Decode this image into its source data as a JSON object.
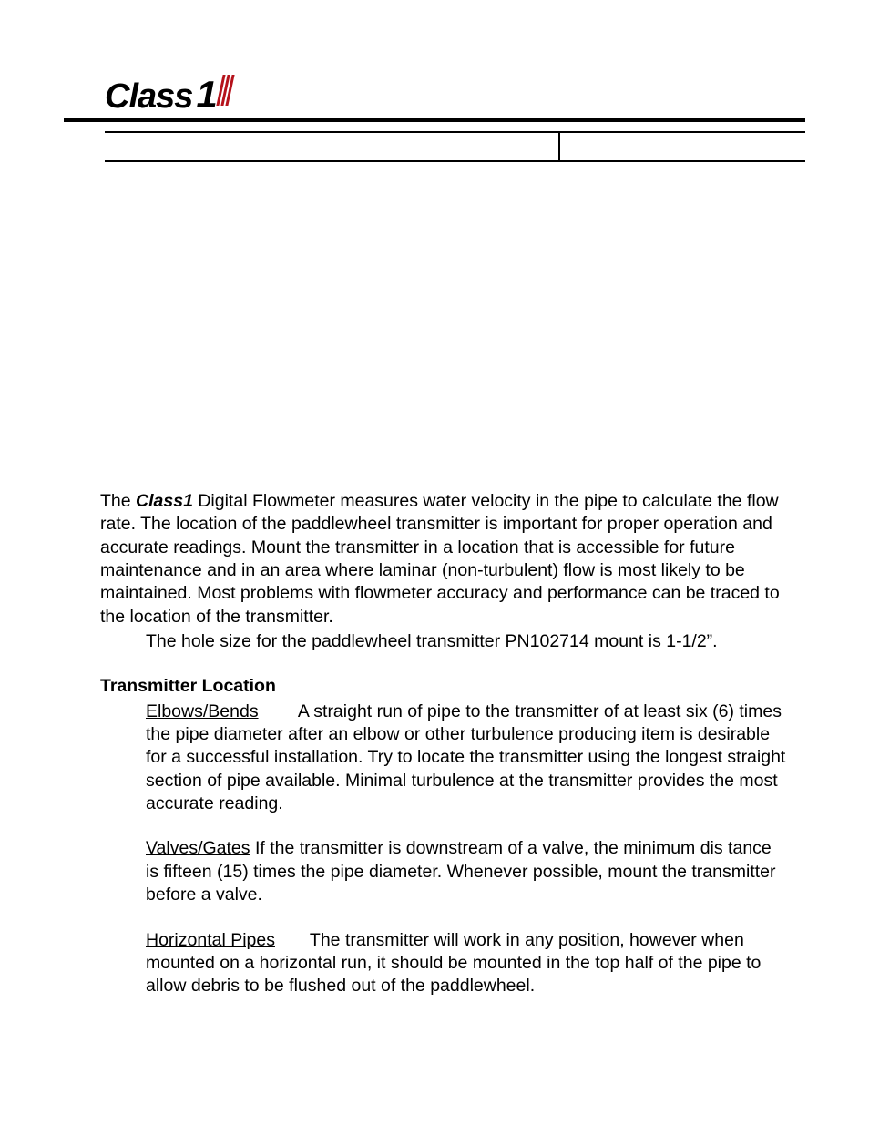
{
  "logo": {
    "text": "Class",
    "one": "1"
  },
  "stripes": [
    "#b5121b",
    "#b5121b",
    "#b5121b"
  ],
  "intro": {
    "brand": "Class1",
    "body_after_brand": "  Digital Flowmeter measures water velocity in the pipe to calculate the flow rate.  The location of the paddlewheel transmitter is important for proper opera­tion and accurate readings.  Mount the transmitter in a location that is accessible for future maintenance and in an area where laminar (non-turbulent) flow is most likely to be maintained.  Most problems with flowmeter accuracy and performance can be traced to the location of the transmitter.",
    "hole_size": "The hole size for the paddlewheel transmitter PN102714 mount is 1-1/2”."
  },
  "transmitter_location": {
    "title": "Transmitter Location",
    "elbows": {
      "label": "Elbows/Bends",
      "gap": "        ",
      "text": "A straight run of pipe to the transmitter of at least six (6) times the pipe diameter after an elbow or other turbulence producing item is desirable for a successful installation.  Try to locate the transmitter using the longest straight section of pipe available.  Minimal turbulence at the transmitter provides the most accurate reading."
    },
    "valves": {
      "label": "Valves/Gates",
      "gap": " ",
      "text": "If the transmitter is downstream of a valve, the minimum dis tance is fifteen (15) times the pipe diameter.   Whenever possible, mount the transmitter before a valve."
    },
    "horizontal": {
      "label": "Horizontal Pipes",
      "gap": "       ",
      "text": "The transmitter will work in any position, however when mounted on a horizontal run, it should be mounted in the top half of the pipe to allow debris to be flushed out of the paddlewheel."
    }
  }
}
